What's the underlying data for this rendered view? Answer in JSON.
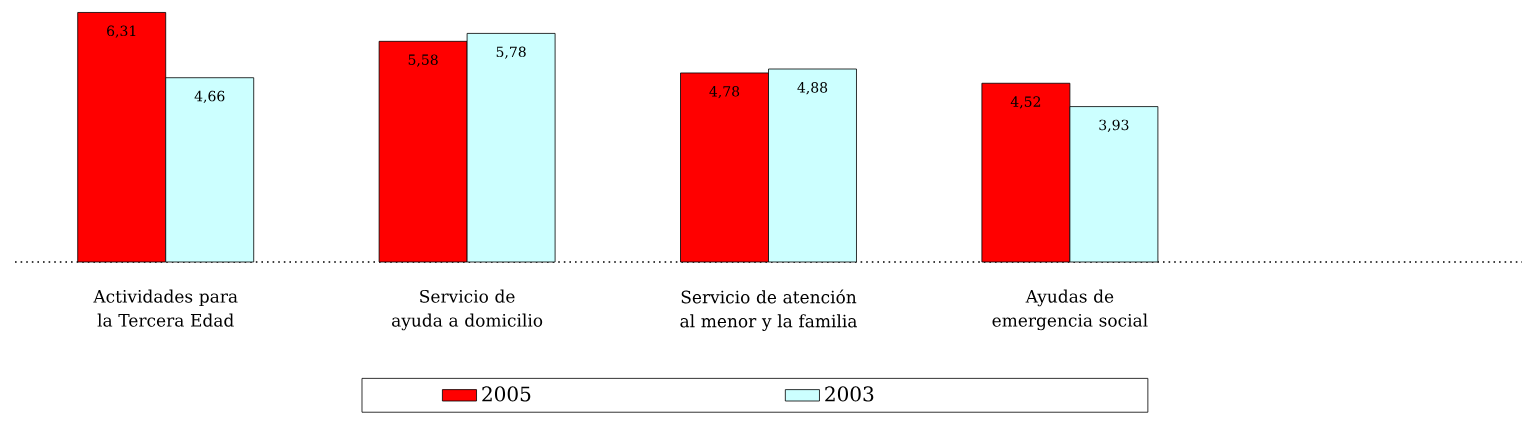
{
  "chart_data": {
    "type": "bar",
    "categories": [
      "Actividades para la Tercera Edad",
      "Servicio de ayuda a domicilio",
      "Servicio de atención al menor y la familia",
      "Ayudas de emergencia social",
      null
    ],
    "series": [
      {
        "name": "2005",
        "color": "#ff0000",
        "values": [
          6.31,
          5.58,
          4.78,
          4.52,
          null
        ],
        "value_labels": [
          "6,31",
          "5,58",
          "4,78",
          "4,52",
          null
        ]
      },
      {
        "name": "2003",
        "color": "#ccffff",
        "values": [
          4.66,
          5.78,
          4.88,
          3.93,
          null
        ],
        "value_labels": [
          "4,66",
          "5,78",
          "4,88",
          "3,93",
          null
        ]
      }
    ],
    "legend": "bottom"
  }
}
